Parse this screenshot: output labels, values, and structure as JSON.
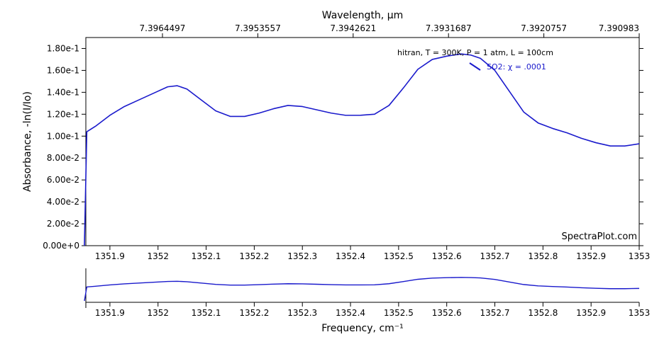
{
  "chart_data": {
    "type": "line",
    "top_axis": {
      "label": "Wavelength, μm",
      "tick_labels": [
        "7.3964497",
        "7.3953557",
        "7.3942621",
        "7.3931687",
        "7.3920757",
        "7.390983"
      ]
    },
    "x": {
      "label": "Frequency, cm⁻¹",
      "range": [
        1351.85,
        1353.0
      ],
      "ticks": [
        1351.9,
        1352.0,
        1352.1,
        1352.2,
        1352.3,
        1352.4,
        1352.5,
        1352.6,
        1352.7,
        1352.8,
        1352.9,
        1353.0
      ],
      "tick_labels": [
        "1351.9",
        "1352",
        "1352.1",
        "1352.2",
        "1352.3",
        "1352.4",
        "1352.5",
        "1352.6",
        "1352.7",
        "1352.8",
        "1352.9",
        "1353"
      ]
    },
    "y": {
      "label": "Absorbance, -ln(I/Io)",
      "range": [
        0,
        0.19
      ],
      "ticks": [
        0,
        0.02,
        0.04,
        0.06,
        0.08,
        0.1,
        0.12,
        0.14,
        0.16,
        0.18
      ],
      "tick_labels": [
        "0.00e+0",
        "2.00e-2",
        "4.00e-2",
        "6.00e-2",
        "8.00e-2",
        "1.00e-1",
        "1.20e-1",
        "1.40e-1",
        "1.60e-1",
        "1.80e-1"
      ]
    },
    "legend": {
      "title": "hitran, T = 300K, P = 1 atm, L = 100cm",
      "placement": "top-right"
    },
    "series": [
      {
        "name": "SO2: χ = .0001",
        "color": "#1a1acc",
        "x": [
          1351.847,
          1351.852,
          1351.87,
          1351.9,
          1351.93,
          1351.96,
          1352.0,
          1352.02,
          1352.04,
          1352.06,
          1352.09,
          1352.12,
          1352.15,
          1352.18,
          1352.21,
          1352.24,
          1352.27,
          1352.3,
          1352.33,
          1352.36,
          1352.39,
          1352.42,
          1352.45,
          1352.48,
          1352.51,
          1352.54,
          1352.57,
          1352.6,
          1352.63,
          1352.65,
          1352.67,
          1352.7,
          1352.73,
          1352.76,
          1352.79,
          1352.82,
          1352.85,
          1352.88,
          1352.91,
          1352.94,
          1352.97,
          1353.0
        ],
        "y": [
          0.0,
          0.104,
          0.109,
          0.119,
          0.127,
          0.133,
          0.141,
          0.145,
          0.146,
          0.143,
          0.133,
          0.123,
          0.118,
          0.118,
          0.121,
          0.125,
          0.128,
          0.127,
          0.124,
          0.121,
          0.119,
          0.119,
          0.12,
          0.128,
          0.144,
          0.161,
          0.17,
          0.173,
          0.175,
          0.174,
          0.171,
          0.16,
          0.141,
          0.122,
          0.112,
          0.107,
          0.103,
          0.098,
          0.094,
          0.091,
          0.091,
          0.093
        ]
      }
    ],
    "overview": {
      "x_ticks": [
        1351.9,
        1352.0,
        1352.1,
        1352.2,
        1352.3,
        1352.4,
        1352.5,
        1352.6,
        1352.7,
        1352.8,
        1352.9,
        1353.0
      ],
      "x_tick_labels": [
        "1351.9",
        "1352",
        "1352.1",
        "1352.2",
        "1352.3",
        "1352.4",
        "1352.5",
        "1352.6",
        "1352.7",
        "1352.8",
        "1352.9",
        "1353"
      ]
    },
    "watermark": "SpectraPlot.com",
    "grid": false
  }
}
